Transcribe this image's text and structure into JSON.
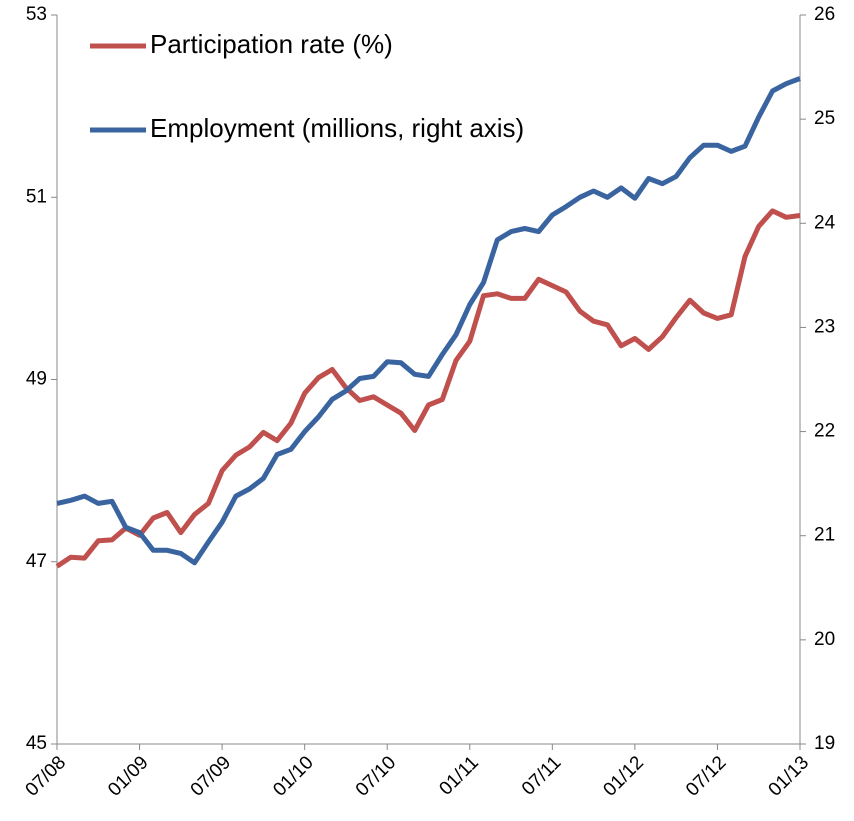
{
  "chart_data": {
    "type": "line",
    "categories": [
      "07/08",
      null,
      null,
      null,
      null,
      null,
      "01/09",
      null,
      null,
      null,
      null,
      null,
      "07/09",
      null,
      null,
      null,
      null,
      null,
      "01/10",
      null,
      null,
      null,
      null,
      null,
      "07/10",
      null,
      null,
      null,
      null,
      null,
      "01/11",
      null,
      null,
      null,
      null,
      null,
      "07/11",
      null,
      null,
      null,
      null,
      null,
      "01/12",
      null,
      null,
      null,
      null,
      null,
      "07/12",
      null,
      null,
      null,
      null,
      null,
      "01/13"
    ],
    "series": [
      {
        "name": "Participation rate (%)",
        "color": "#c0504d",
        "values": [
          46.95,
          47.05,
          47.04,
          47.23,
          47.24,
          47.37,
          47.29,
          47.48,
          47.54,
          47.32,
          47.52,
          47.64,
          48.0,
          48.17,
          48.26,
          48.42,
          48.33,
          48.52,
          48.85,
          49.02,
          49.11,
          48.91,
          48.77,
          48.81,
          48.72,
          48.63,
          48.44,
          48.72,
          48.78,
          49.21,
          49.42,
          49.92,
          49.94,
          49.89,
          49.89,
          50.1,
          50.03,
          49.96,
          49.75,
          49.64,
          49.6,
          49.37,
          49.45,
          49.33,
          49.47,
          49.68,
          49.87,
          49.73,
          49.67,
          49.71,
          50.35,
          50.68,
          50.85,
          50.78,
          50.8
        ]
      },
      {
        "name": "Employment (millions, right axis)",
        "color": "#3a64a0",
        "axis": "y2",
        "values": [
          21.31,
          21.34,
          21.38,
          21.31,
          21.33,
          21.08,
          21.03,
          20.86,
          20.86,
          20.83,
          20.74,
          20.94,
          21.13,
          21.38,
          21.45,
          21.55,
          21.78,
          21.83,
          22.0,
          22.14,
          22.31,
          22.39,
          22.51,
          22.53,
          22.67,
          22.66,
          22.55,
          22.53,
          22.74,
          22.93,
          23.22,
          23.43,
          23.84,
          23.92,
          23.95,
          23.92,
          24.08,
          24.16,
          24.25,
          24.31,
          24.25,
          24.34,
          24.24,
          24.43,
          24.38,
          24.45,
          24.63,
          24.75,
          24.75,
          24.69,
          24.74,
          25.02,
          25.27,
          25.34,
          25.39
        ]
      }
    ],
    "ylim": [
      45,
      53
    ],
    "yticks": [
      45,
      47,
      49,
      51,
      53
    ],
    "y2lim": [
      19,
      26
    ],
    "y2ticks": [
      19,
      20,
      21,
      22,
      23,
      24,
      25,
      26
    ],
    "legend": "top-left"
  }
}
